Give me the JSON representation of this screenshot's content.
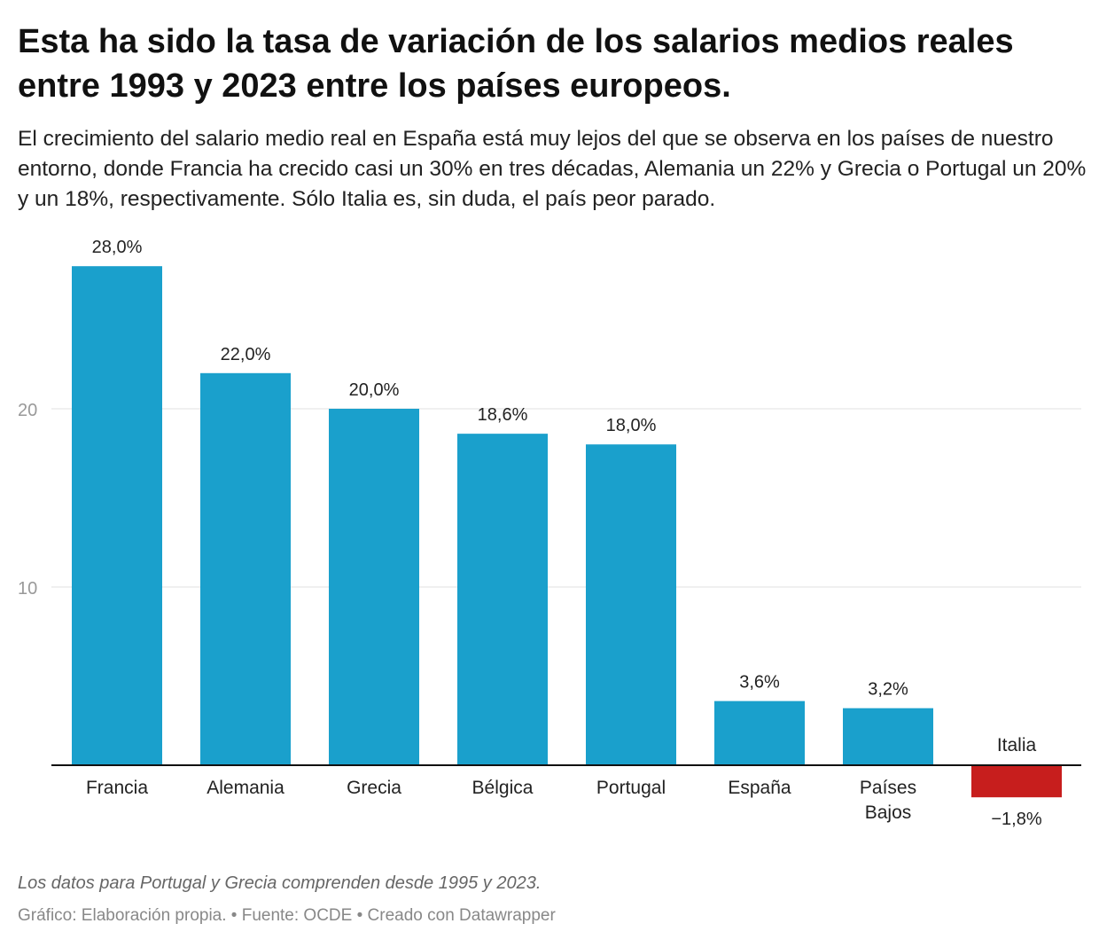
{
  "title": "Esta ha sido la tasa de variación de los salarios medios reales entre 1993 y 2023 entre los países europeos.",
  "subtitle": "El crecimiento del salario medio real en España está muy lejos del que se observa en los países de nuestro entorno, donde Francia ha crecido casi un 30% en tres décadas, Alemania un 22% y Grecia o Portugal un 20% y un 18%, respectivamente. Sólo Italia es, sin duda, el país peor parado.",
  "note": "Los datos para Portugal y Grecia comprenden desde 1995 y 2023.",
  "byline": "Gráfico: Elaboración propia. • Fuente: OCDE • Creado con Datawrapper",
  "chart_data": {
    "type": "bar",
    "categories": [
      "Francia",
      "Alemania",
      "Grecia",
      "Bélgica",
      "Portugal",
      "España",
      "Países Bajos",
      "Italia"
    ],
    "values": [
      28.0,
      22.0,
      20.0,
      18.6,
      18.0,
      3.6,
      3.2,
      -1.8
    ],
    "data_labels": [
      "28,0%",
      "22,0%",
      "20,0%",
      "18,6%",
      "18,0%",
      "3,6%",
      "3,2%",
      "−1,8%"
    ],
    "yticks": [
      10,
      20
    ],
    "grid": true,
    "colors": {
      "positive": "#1aa0cc",
      "negative": "#c71e1d"
    }
  }
}
